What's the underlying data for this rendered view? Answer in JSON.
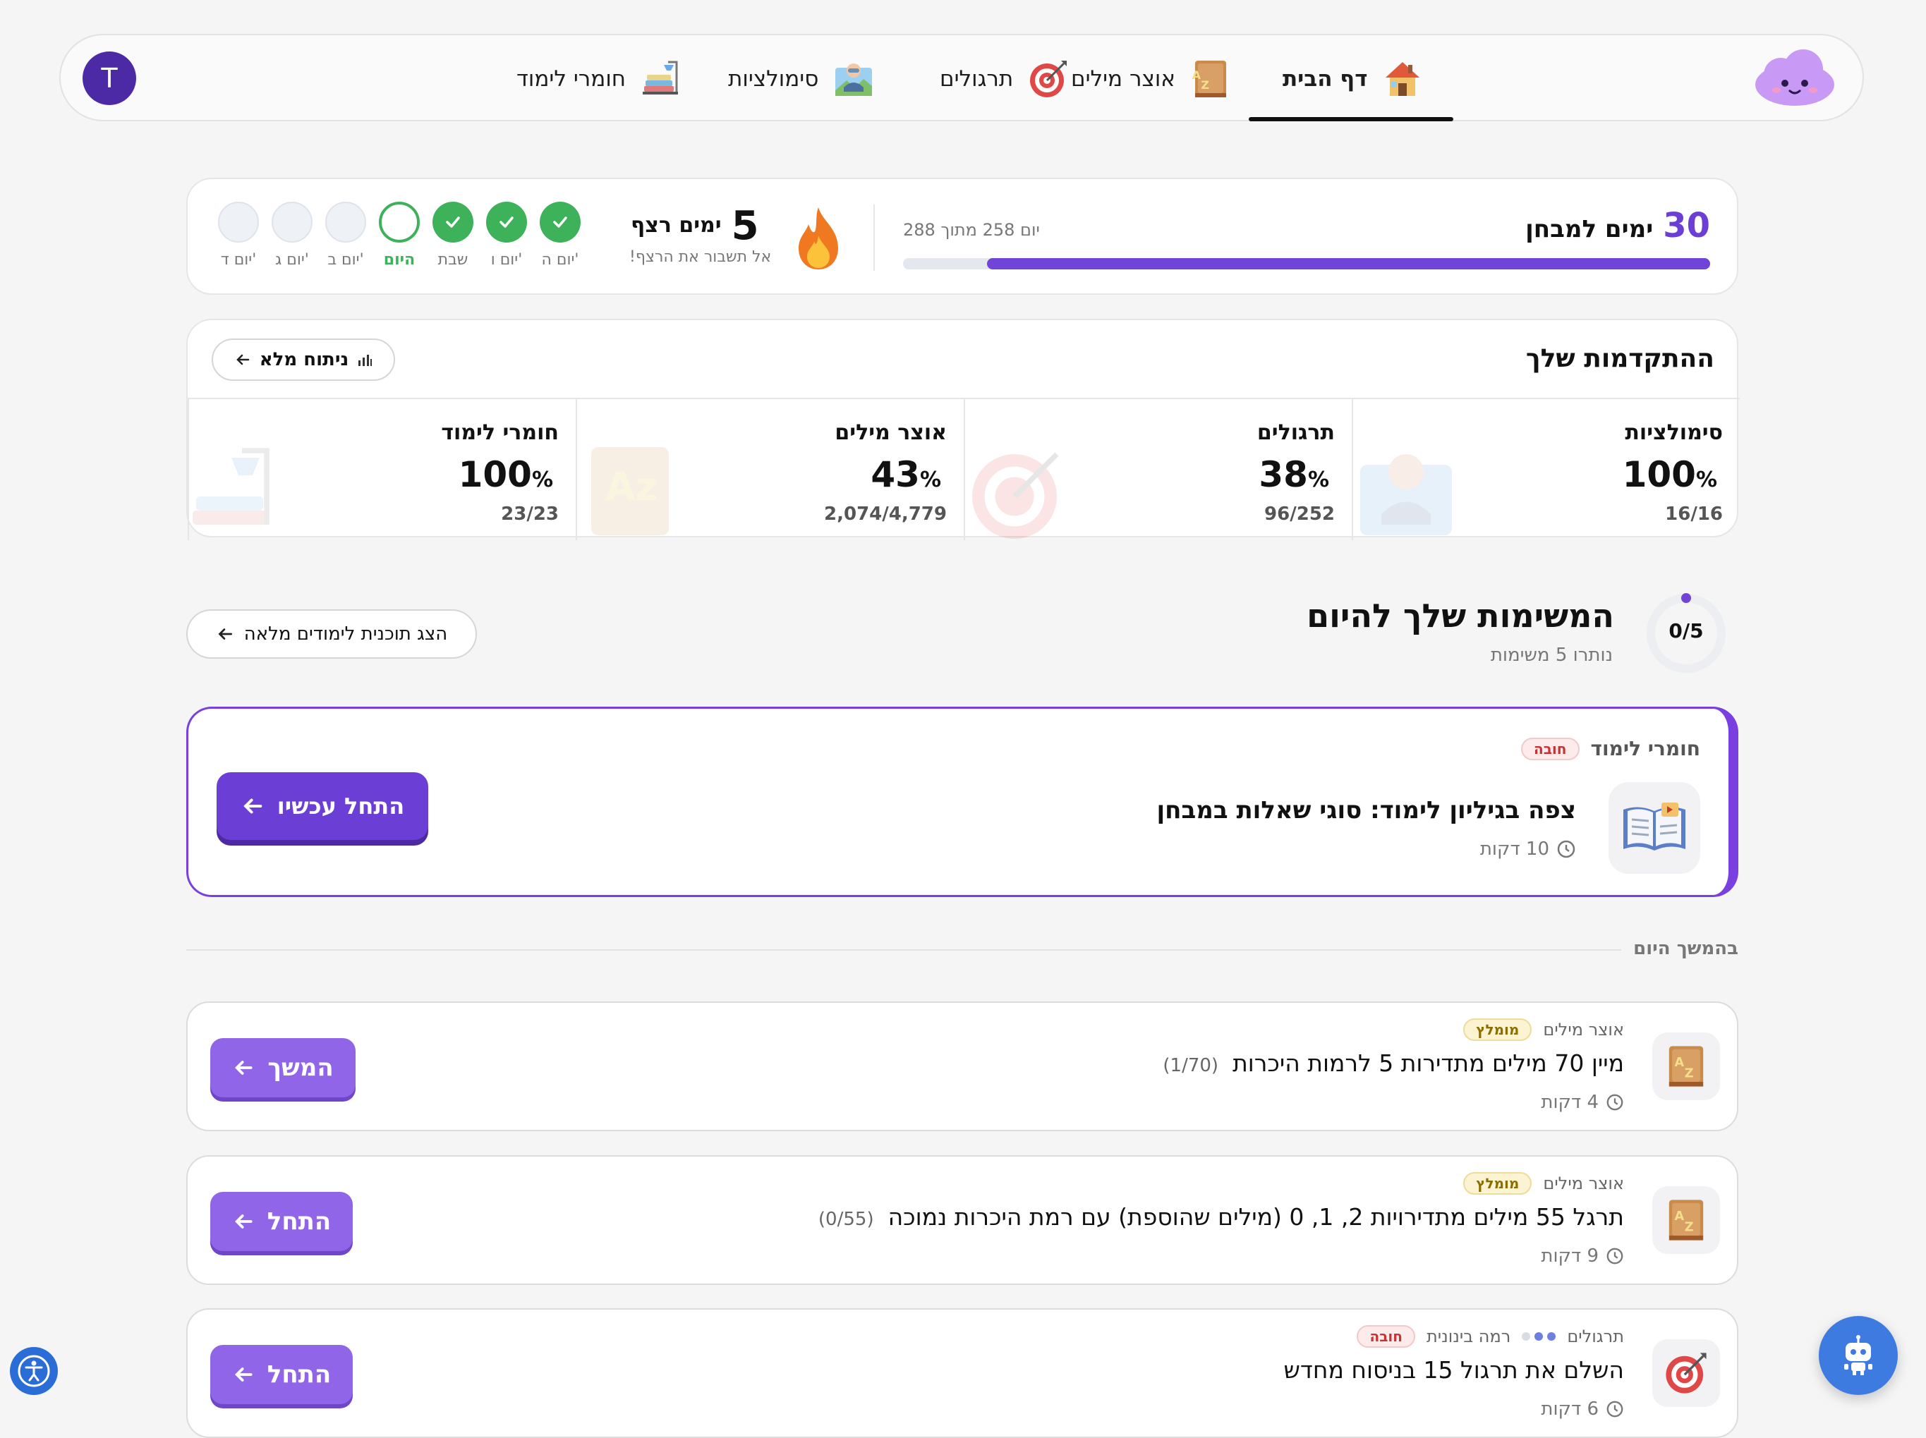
{
  "nav": {
    "avatar_letter": "T",
    "items": [
      {
        "label": "דף הבית",
        "icon": "house-icon"
      },
      {
        "label": "אוצר מילים",
        "icon": "vocabulary-book-icon"
      },
      {
        "label": "תרגולים",
        "icon": "target-icon"
      },
      {
        "label": "סימולציות",
        "icon": "simulation-icon"
      },
      {
        "label": "חומרי לימוד",
        "icon": "study-materials-icon"
      }
    ],
    "active": "דף הבית"
  },
  "countdown": {
    "days": "30",
    "label": "ימים למבחן",
    "day_progress": "יום 258 מתוך 288",
    "progress_fraction": 0.896
  },
  "streak": {
    "days": "5",
    "label": "ימים רצף",
    "subtitle": "אל תשבור את הרצף!",
    "week": [
      {
        "label": "יום ה'",
        "state": "done"
      },
      {
        "label": "יום ו'",
        "state": "done"
      },
      {
        "label": "שבת",
        "state": "done"
      },
      {
        "label": "היום",
        "state": "today"
      },
      {
        "label": "יום ב'",
        "state": "future"
      },
      {
        "label": "יום ג'",
        "state": "future"
      },
      {
        "label": "יום ד'",
        "state": "future"
      }
    ]
  },
  "progress": {
    "title": "ההתקדמות שלך",
    "full_analysis_label": "ניתוח מלא",
    "cells": [
      {
        "title": "סימולציות",
        "percent": "100",
        "fraction": "16/16",
        "icon": "simulation-icon"
      },
      {
        "title": "תרגולים",
        "percent": "38",
        "fraction": "96/252",
        "icon": "target-icon"
      },
      {
        "title": "אוצר מילים",
        "percent": "43",
        "fraction": "2,074/4,779",
        "icon": "vocabulary-book-icon"
      },
      {
        "title": "חומרי לימוד",
        "percent": "100",
        "fraction": "23/23",
        "icon": "study-materials-icon"
      }
    ],
    "percent_sign": "%"
  },
  "tasks": {
    "title": "המשימות שלך להיום",
    "remaining": "נותרו 5 משימות",
    "counter": "0/5",
    "full_plan_label": "הצג תוכנית לימודים מלאה",
    "featured": {
      "category": "חומרי לימוד",
      "badge": "חובה",
      "title": "צפה בגיליון לימוד: סוגי שאלות במבחן",
      "duration": "10 דקות",
      "button": "התחל עכשיו"
    },
    "later_label": "בהמשך היום",
    "list": [
      {
        "category": "אוצר מילים",
        "badge": "מומלץ",
        "title": "מיין 70 מילים מתדירות 5 לרמות היכרות",
        "count": "(1/70)",
        "duration": "4 דקות",
        "button": "המשך"
      },
      {
        "category": "אוצר מילים",
        "badge": "מומלץ",
        "title": "תרגל 55 מילים מתדירויות 2, 1, 0 (מילים שהוספת) עם רמת היכרות נמוכה",
        "count": "(0/55)",
        "duration": "9 דקות",
        "button": "התחל"
      },
      {
        "category": "תרגולים",
        "level": "רמה בינונית",
        "badge": "חובה",
        "title": "השלם את תרגול 15 בניסוח מחדש",
        "duration": "6 דקות",
        "button": "התחל"
      }
    ]
  },
  "colors": {
    "accent": "#6b3fd6",
    "success": "#3db25a",
    "required": "#c43434",
    "recommended": "#8a6e00"
  }
}
